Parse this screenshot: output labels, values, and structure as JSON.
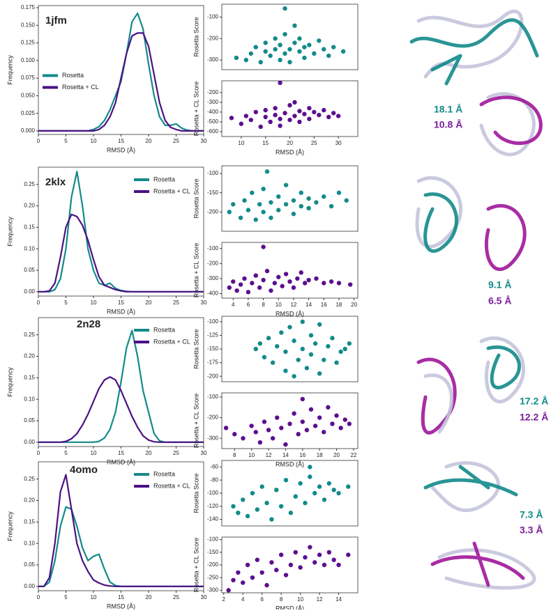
{
  "chart_data": [
    {
      "type": "line",
      "title": "1jfm",
      "xlabel": "RMSD (Å)",
      "ylabel": "Frequency",
      "legend": "center left",
      "xlim": [
        0,
        30
      ],
      "xticks": [
        0,
        5,
        10,
        15,
        20,
        25,
        30
      ],
      "ylim": [
        -0.005,
        0.178
      ],
      "yticks": [
        {
          "value": 0,
          "label": "0.000"
        },
        {
          "value": 0.025,
          "label": "0.025"
        },
        {
          "value": 0.05,
          "label": "0.050"
        },
        {
          "value": 0.075,
          "label": "0.075"
        },
        {
          "value": 0.1,
          "label": "0.100"
        },
        {
          "value": 0.125,
          "label": "0.125"
        },
        {
          "value": 0.15,
          "label": "0.150"
        },
        {
          "value": 0.175,
          "label": "0.175"
        }
      ],
      "x": [
        0,
        1,
        2,
        3,
        4,
        5,
        6,
        7,
        8,
        9,
        10,
        11,
        12,
        13,
        14,
        15,
        16,
        17,
        18,
        19,
        20,
        21,
        22,
        23,
        24,
        25,
        26,
        27,
        28,
        29,
        30
      ],
      "series": [
        {
          "name": "Rosetta",
          "color": "#138a8a",
          "values": [
            0,
            0,
            0,
            0,
            0,
            0,
            0,
            0,
            0,
            0,
            0.002,
            0.006,
            0.015,
            0.03,
            0.05,
            0.07,
            0.11,
            0.155,
            0.167,
            0.145,
            0.095,
            0.05,
            0.02,
            0.008,
            0.008,
            0.01,
            0.004,
            0.001,
            0,
            0,
            0
          ]
        },
        {
          "name": "Rosetta + CL",
          "color": "#4b1185",
          "values": [
            0,
            0,
            0,
            0,
            0,
            0,
            0,
            0,
            0,
            0,
            0,
            0.002,
            0.008,
            0.02,
            0.04,
            0.075,
            0.11,
            0.135,
            0.139,
            0.139,
            0.12,
            0.08,
            0.04,
            0.015,
            0.005,
            0.002,
            0,
            0,
            0,
            0,
            0
          ]
        }
      ],
      "annotations": [
        {
          "text": "18.1 Å",
          "color": "#138a8a"
        },
        {
          "text": "10.8 Å",
          "color": "#7a1f9a"
        }
      ]
    },
    {
      "type": "scatter",
      "ylabel": "Rosetta Score",
      "color": "#138a8a",
      "xlim": [
        6,
        34
      ],
      "ylim": [
        -345,
        -40
      ],
      "yticks": [
        -100,
        -200,
        -300
      ],
      "x": [
        9,
        11,
        12,
        13,
        14,
        15,
        15,
        16,
        17,
        17,
        18,
        18,
        19,
        19,
        20,
        20,
        21,
        21,
        22,
        22,
        23,
        23,
        24,
        25,
        26,
        27,
        28,
        29,
        31,
        19
      ],
      "values": [
        -290,
        -300,
        -270,
        -240,
        -310,
        -260,
        -220,
        -280,
        -250,
        -200,
        -300,
        -230,
        -270,
        -180,
        -250,
        -310,
        -220,
        -140,
        -260,
        -200,
        -290,
        -240,
        -230,
        -270,
        -210,
        -250,
        -280,
        -240,
        -260,
        -60
      ]
    },
    {
      "type": "scatter",
      "ylabel": "Rosetta + CL Score",
      "xlabel": "RMSD (Å)",
      "color": "#5c0f8f",
      "xlim": [
        6,
        34
      ],
      "xticks": [
        10,
        15,
        20,
        25,
        30
      ],
      "ylim": [
        -650,
        -80
      ],
      "yticks": [
        -200,
        -300,
        -400,
        -500,
        -600
      ],
      "x": [
        8,
        10,
        11,
        12,
        13,
        14,
        15,
        15,
        16,
        17,
        17,
        18,
        18,
        19,
        20,
        20,
        21,
        21,
        22,
        22,
        23,
        24,
        24,
        25,
        26,
        27,
        28,
        29,
        30,
        18
      ],
      "values": [
        -460,
        -520,
        -440,
        -480,
        -400,
        -550,
        -450,
        -380,
        -500,
        -430,
        -360,
        -470,
        -540,
        -410,
        -330,
        -480,
        -440,
        -300,
        -390,
        -500,
        -420,
        -360,
        -470,
        -400,
        -430,
        -380,
        -450,
        -410,
        -440,
        -100
      ]
    },
    {
      "type": "line",
      "title": "2klx",
      "xlabel": "RMSD (Å)",
      "ylabel": "Frequency",
      "legend": "upper right",
      "xlim": [
        0,
        30
      ],
      "xticks": [
        0,
        5,
        10,
        15,
        20,
        25,
        30
      ],
      "ylim": [
        -0.01,
        0.29
      ],
      "yticks": [
        {
          "value": 0,
          "label": "0.00"
        },
        {
          "value": 0.05,
          "label": "0.05"
        },
        {
          "value": 0.1,
          "label": "0.10"
        },
        {
          "value": 0.15,
          "label": "0.15"
        },
        {
          "value": 0.2,
          "label": "0.20"
        },
        {
          "value": 0.25,
          "label": "0.25"
        }
      ],
      "x": [
        0,
        1,
        2,
        3,
        4,
        5,
        6,
        7,
        8,
        9,
        10,
        11,
        12,
        13,
        14,
        15,
        16,
        17,
        18,
        19,
        20,
        21,
        22,
        23,
        24,
        25,
        26,
        27,
        28,
        29,
        30
      ],
      "series": [
        {
          "name": "Rosetta",
          "color": "#138a8a",
          "values": [
            0,
            0,
            0,
            0.005,
            0.03,
            0.1,
            0.22,
            0.28,
            0.2,
            0.1,
            0.05,
            0.02,
            0.015,
            0.02,
            0.008,
            0.003,
            0.001,
            0,
            0,
            0,
            0,
            0,
            0,
            0,
            0,
            0,
            0,
            0,
            0,
            0,
            0
          ]
        },
        {
          "name": "Rosetta + CL",
          "color": "#4b1185",
          "values": [
            0,
            0,
            0.002,
            0.02,
            0.08,
            0.15,
            0.18,
            0.175,
            0.155,
            0.12,
            0.075,
            0.035,
            0.015,
            0.01,
            0.005,
            0.002,
            0,
            0,
            0,
            0,
            0,
            0,
            0,
            0,
            0,
            0,
            0,
            0,
            0,
            0,
            0
          ]
        }
      ],
      "annotations": [
        {
          "text": "9.1 Å",
          "color": "#138a8a"
        },
        {
          "text": "6.5 Å",
          "color": "#7a1f9a"
        }
      ]
    },
    {
      "type": "scatter",
      "ylabel": "Rosetta Score",
      "color": "#138a8a",
      "xlim": [
        2.5,
        20.5
      ],
      "ylim": [
        -250,
        -80
      ],
      "yticks": [
        -100,
        -150,
        -200
      ],
      "x": [
        3.5,
        4,
        5,
        5.5,
        6,
        6.5,
        7,
        7.5,
        8,
        8,
        9,
        9,
        10,
        10,
        11,
        11,
        12,
        12,
        13,
        13,
        14,
        14,
        15,
        16,
        17,
        18,
        19,
        8.5
      ],
      "values": [
        -200,
        -180,
        -215,
        -170,
        -195,
        -150,
        -220,
        -180,
        -200,
        -140,
        -175,
        -215,
        -160,
        -195,
        -180,
        -130,
        -205,
        -170,
        -185,
        -150,
        -190,
        -165,
        -175,
        -160,
        -185,
        -150,
        -170,
        -95
      ]
    },
    {
      "type": "scatter",
      "ylabel": "Rosetta + CL Score",
      "xlabel": "RMSD (Å)",
      "color": "#5c0f8f",
      "xlim": [
        2.5,
        20.5
      ],
      "xticks": [
        4,
        6,
        8,
        10,
        12,
        14,
        16,
        18,
        20
      ],
      "ylim": [
        -430,
        -60
      ],
      "yticks": [
        -100,
        -200,
        -300,
        -400
      ],
      "x": [
        3.5,
        4,
        4.5,
        5,
        5.5,
        6,
        6.5,
        7,
        7.5,
        8,
        8.5,
        9,
        9.5,
        10,
        10.5,
        11,
        11.5,
        12,
        12.5,
        13,
        13.5,
        14,
        15,
        16,
        17,
        18,
        19.5,
        8
      ],
      "values": [
        -360,
        -320,
        -380,
        -340,
        -300,
        -390,
        -330,
        -280,
        -360,
        -310,
        -250,
        -380,
        -330,
        -290,
        -350,
        -270,
        -320,
        -360,
        -300,
        -260,
        -330,
        -310,
        -300,
        -330,
        -320,
        -330,
        -340,
        -90
      ]
    },
    {
      "type": "line",
      "title": "2n28",
      "xlabel": "RMSD (Å)",
      "ylabel": "Frequency",
      "legend": "upper right",
      "xlim": [
        0,
        30
      ],
      "xticks": [
        0,
        5,
        10,
        15,
        20,
        25,
        30
      ],
      "ylim": [
        -0.01,
        0.29
      ],
      "yticks": [
        {
          "value": 0,
          "label": "0.00"
        },
        {
          "value": 0.05,
          "label": "0.05"
        },
        {
          "value": 0.1,
          "label": "0.10"
        },
        {
          "value": 0.15,
          "label": "0.15"
        },
        {
          "value": 0.2,
          "label": "0.20"
        },
        {
          "value": 0.25,
          "label": "0.25"
        }
      ],
      "x": [
        0,
        1,
        2,
        3,
        4,
        5,
        6,
        7,
        8,
        9,
        10,
        11,
        12,
        13,
        14,
        15,
        16,
        17,
        18,
        19,
        20,
        21,
        22,
        23,
        24,
        25,
        26,
        27,
        28,
        29,
        30
      ],
      "series": [
        {
          "name": "Rosetta",
          "color": "#138a8a",
          "values": [
            0,
            0,
            0,
            0,
            0,
            0,
            0,
            0,
            0,
            0,
            0,
            0.002,
            0.01,
            0.03,
            0.07,
            0.14,
            0.22,
            0.26,
            0.2,
            0.12,
            0.07,
            0.02,
            0.003,
            0,
            0,
            0,
            0,
            0,
            0,
            0,
            0
          ]
        },
        {
          "name": "Rosetta + CL",
          "color": "#4b1185",
          "values": [
            0,
            0,
            0,
            0,
            0,
            0.002,
            0.008,
            0.02,
            0.04,
            0.065,
            0.095,
            0.125,
            0.145,
            0.152,
            0.145,
            0.12,
            0.09,
            0.06,
            0.035,
            0.015,
            0.005,
            0.001,
            0,
            0,
            0,
            0,
            0,
            0,
            0,
            0,
            0
          ]
        }
      ],
      "annotations": [
        {
          "text": "17.2 Å",
          "color": "#138a8a"
        },
        {
          "text": "12.2 Å",
          "color": "#7a1f9a"
        }
      ]
    },
    {
      "type": "scatter",
      "ylabel": "Rosetta Score",
      "color": "#138a8a",
      "xlim": [
        6.5,
        22.5
      ],
      "ylim": [
        -210,
        -90
      ],
      "yticks": [
        -100,
        -125,
        -150,
        -175,
        -200
      ],
      "x": [
        10.5,
        11,
        11.5,
        12,
        12.5,
        13,
        13.5,
        14,
        14,
        14.5,
        15,
        15,
        15.5,
        16,
        16,
        16.5,
        17,
        17,
        17.5,
        18,
        18,
        18.5,
        19,
        19.5,
        20,
        20.5,
        21,
        21.5
      ],
      "values": [
        -150,
        -140,
        -165,
        -130,
        -175,
        -145,
        -120,
        -190,
        -155,
        -110,
        -200,
        -135,
        -170,
        -100,
        -150,
        -185,
        -125,
        -160,
        -140,
        -195,
        -105,
        -170,
        -145,
        -130,
        -175,
        -155,
        -150,
        -140
      ]
    },
    {
      "type": "scatter",
      "ylabel": "Rosetta + CL Score",
      "xlabel": "RMSD (Å)",
      "color": "#5c0f8f",
      "xlim": [
        6.5,
        22.5
      ],
      "xticks": [
        8,
        10,
        12,
        14,
        16,
        18,
        20,
        22
      ],
      "ylim": [
        -350,
        -80
      ],
      "yticks": [
        -100,
        -200,
        -300
      ],
      "x": [
        7,
        8,
        9,
        10,
        10.5,
        11,
        11.5,
        12,
        12.5,
        13,
        13.5,
        14,
        14.5,
        15,
        15.5,
        16,
        16.5,
        17,
        17.5,
        18,
        18.5,
        19,
        19.5,
        20,
        20.5,
        21,
        21.5,
        16
      ],
      "values": [
        -250,
        -280,
        -300,
        -240,
        -270,
        -320,
        -220,
        -260,
        -300,
        -200,
        -250,
        -330,
        -230,
        -180,
        -280,
        -220,
        -260,
        -160,
        -240,
        -200,
        -270,
        -150,
        -230,
        -190,
        -250,
        -210,
        -230,
        -110
      ]
    },
    {
      "type": "line",
      "title": "4omo",
      "xlabel": "RMSD (Å)",
      "ylabel": "Frequency",
      "legend": "upper right",
      "xlim": [
        0,
        30
      ],
      "xticks": [
        0,
        5,
        10,
        15,
        20,
        25,
        30
      ],
      "ylim": [
        -0.01,
        0.29
      ],
      "yticks": [
        {
          "value": 0,
          "label": "0.00"
        },
        {
          "value": 0.05,
          "label": "0.05"
        },
        {
          "value": 0.1,
          "label": "0.10"
        },
        {
          "value": 0.15,
          "label": "0.15"
        },
        {
          "value": 0.2,
          "label": "0.20"
        },
        {
          "value": 0.25,
          "label": "0.25"
        }
      ],
      "x": [
        0,
        1,
        2,
        3,
        4,
        5,
        6,
        7,
        8,
        9,
        10,
        11,
        12,
        13,
        14,
        15,
        16,
        17,
        18,
        19,
        20,
        21,
        22,
        23,
        24,
        25,
        26,
        27,
        28,
        29,
        30
      ],
      "series": [
        {
          "name": "Rosetta",
          "color": "#138a8a",
          "values": [
            0,
            0,
            0.01,
            0.06,
            0.14,
            0.185,
            0.18,
            0.14,
            0.09,
            0.06,
            0.07,
            0.075,
            0.04,
            0.01,
            0.002,
            0,
            0,
            0,
            0,
            0,
            0,
            0,
            0,
            0,
            0,
            0,
            0,
            0,
            0,
            0,
            0
          ]
        },
        {
          "name": "Rosetta + CL",
          "color": "#4b1185",
          "values": [
            0,
            0,
            0.02,
            0.1,
            0.22,
            0.26,
            0.18,
            0.1,
            0.06,
            0.035,
            0.015,
            0.008,
            0.003,
            0.001,
            0,
            0,
            0,
            0,
            0,
            0,
            0,
            0,
            0,
            0,
            0,
            0,
            0,
            0,
            0,
            0,
            0
          ]
        }
      ],
      "annotations": [
        {
          "text": "7.3 Å",
          "color": "#138a8a"
        },
        {
          "text": "3.3 Å",
          "color": "#7a1f9a"
        }
      ]
    },
    {
      "type": "scatter",
      "ylabel": "Rosetta Score",
      "color": "#138a8a",
      "xlim": [
        1.8,
        16
      ],
      "ylim": [
        -150,
        -50
      ],
      "yticks": [
        -60,
        -80,
        -100,
        -120,
        -140
      ],
      "x": [
        3,
        3.5,
        4,
        4.5,
        5,
        5.5,
        6,
        6.5,
        7,
        7.5,
        8,
        8.5,
        9,
        9.5,
        10,
        10.5,
        11,
        11.5,
        12,
        12.5,
        13,
        13.5,
        14,
        15,
        11
      ],
      "values": [
        -120,
        -130,
        -110,
        -135,
        -100,
        -125,
        -90,
        -115,
        -140,
        -95,
        -120,
        -80,
        -130,
        -105,
        -85,
        -115,
        -75,
        -100,
        -90,
        -110,
        -85,
        -95,
        -100,
        -90,
        -60
      ]
    },
    {
      "type": "scatter",
      "ylabel": "Rosetta + CL Score",
      "xlabel": "RMSD (Å)",
      "color": "#5c0f8f",
      "xlim": [
        1.8,
        16
      ],
      "xticks": [
        2,
        4,
        6,
        8,
        10,
        12,
        14
      ],
      "ylim": [
        -310,
        -90
      ],
      "yticks": [
        -100,
        -150,
        -200,
        -250,
        -300
      ],
      "x": [
        2.5,
        3,
        3.5,
        4,
        4.5,
        5,
        5.5,
        6,
        6.5,
        7,
        7.5,
        8,
        8.5,
        9,
        9.5,
        10,
        10.5,
        11,
        11.5,
        12,
        12.5,
        13,
        13.5,
        14,
        15
      ],
      "values": [
        -300,
        -260,
        -230,
        -270,
        -200,
        -250,
        -180,
        -230,
        -280,
        -190,
        -220,
        -160,
        -240,
        -200,
        -150,
        -210,
        -170,
        -130,
        -190,
        -160,
        -200,
        -150,
        -180,
        -200,
        -160
      ]
    }
  ]
}
